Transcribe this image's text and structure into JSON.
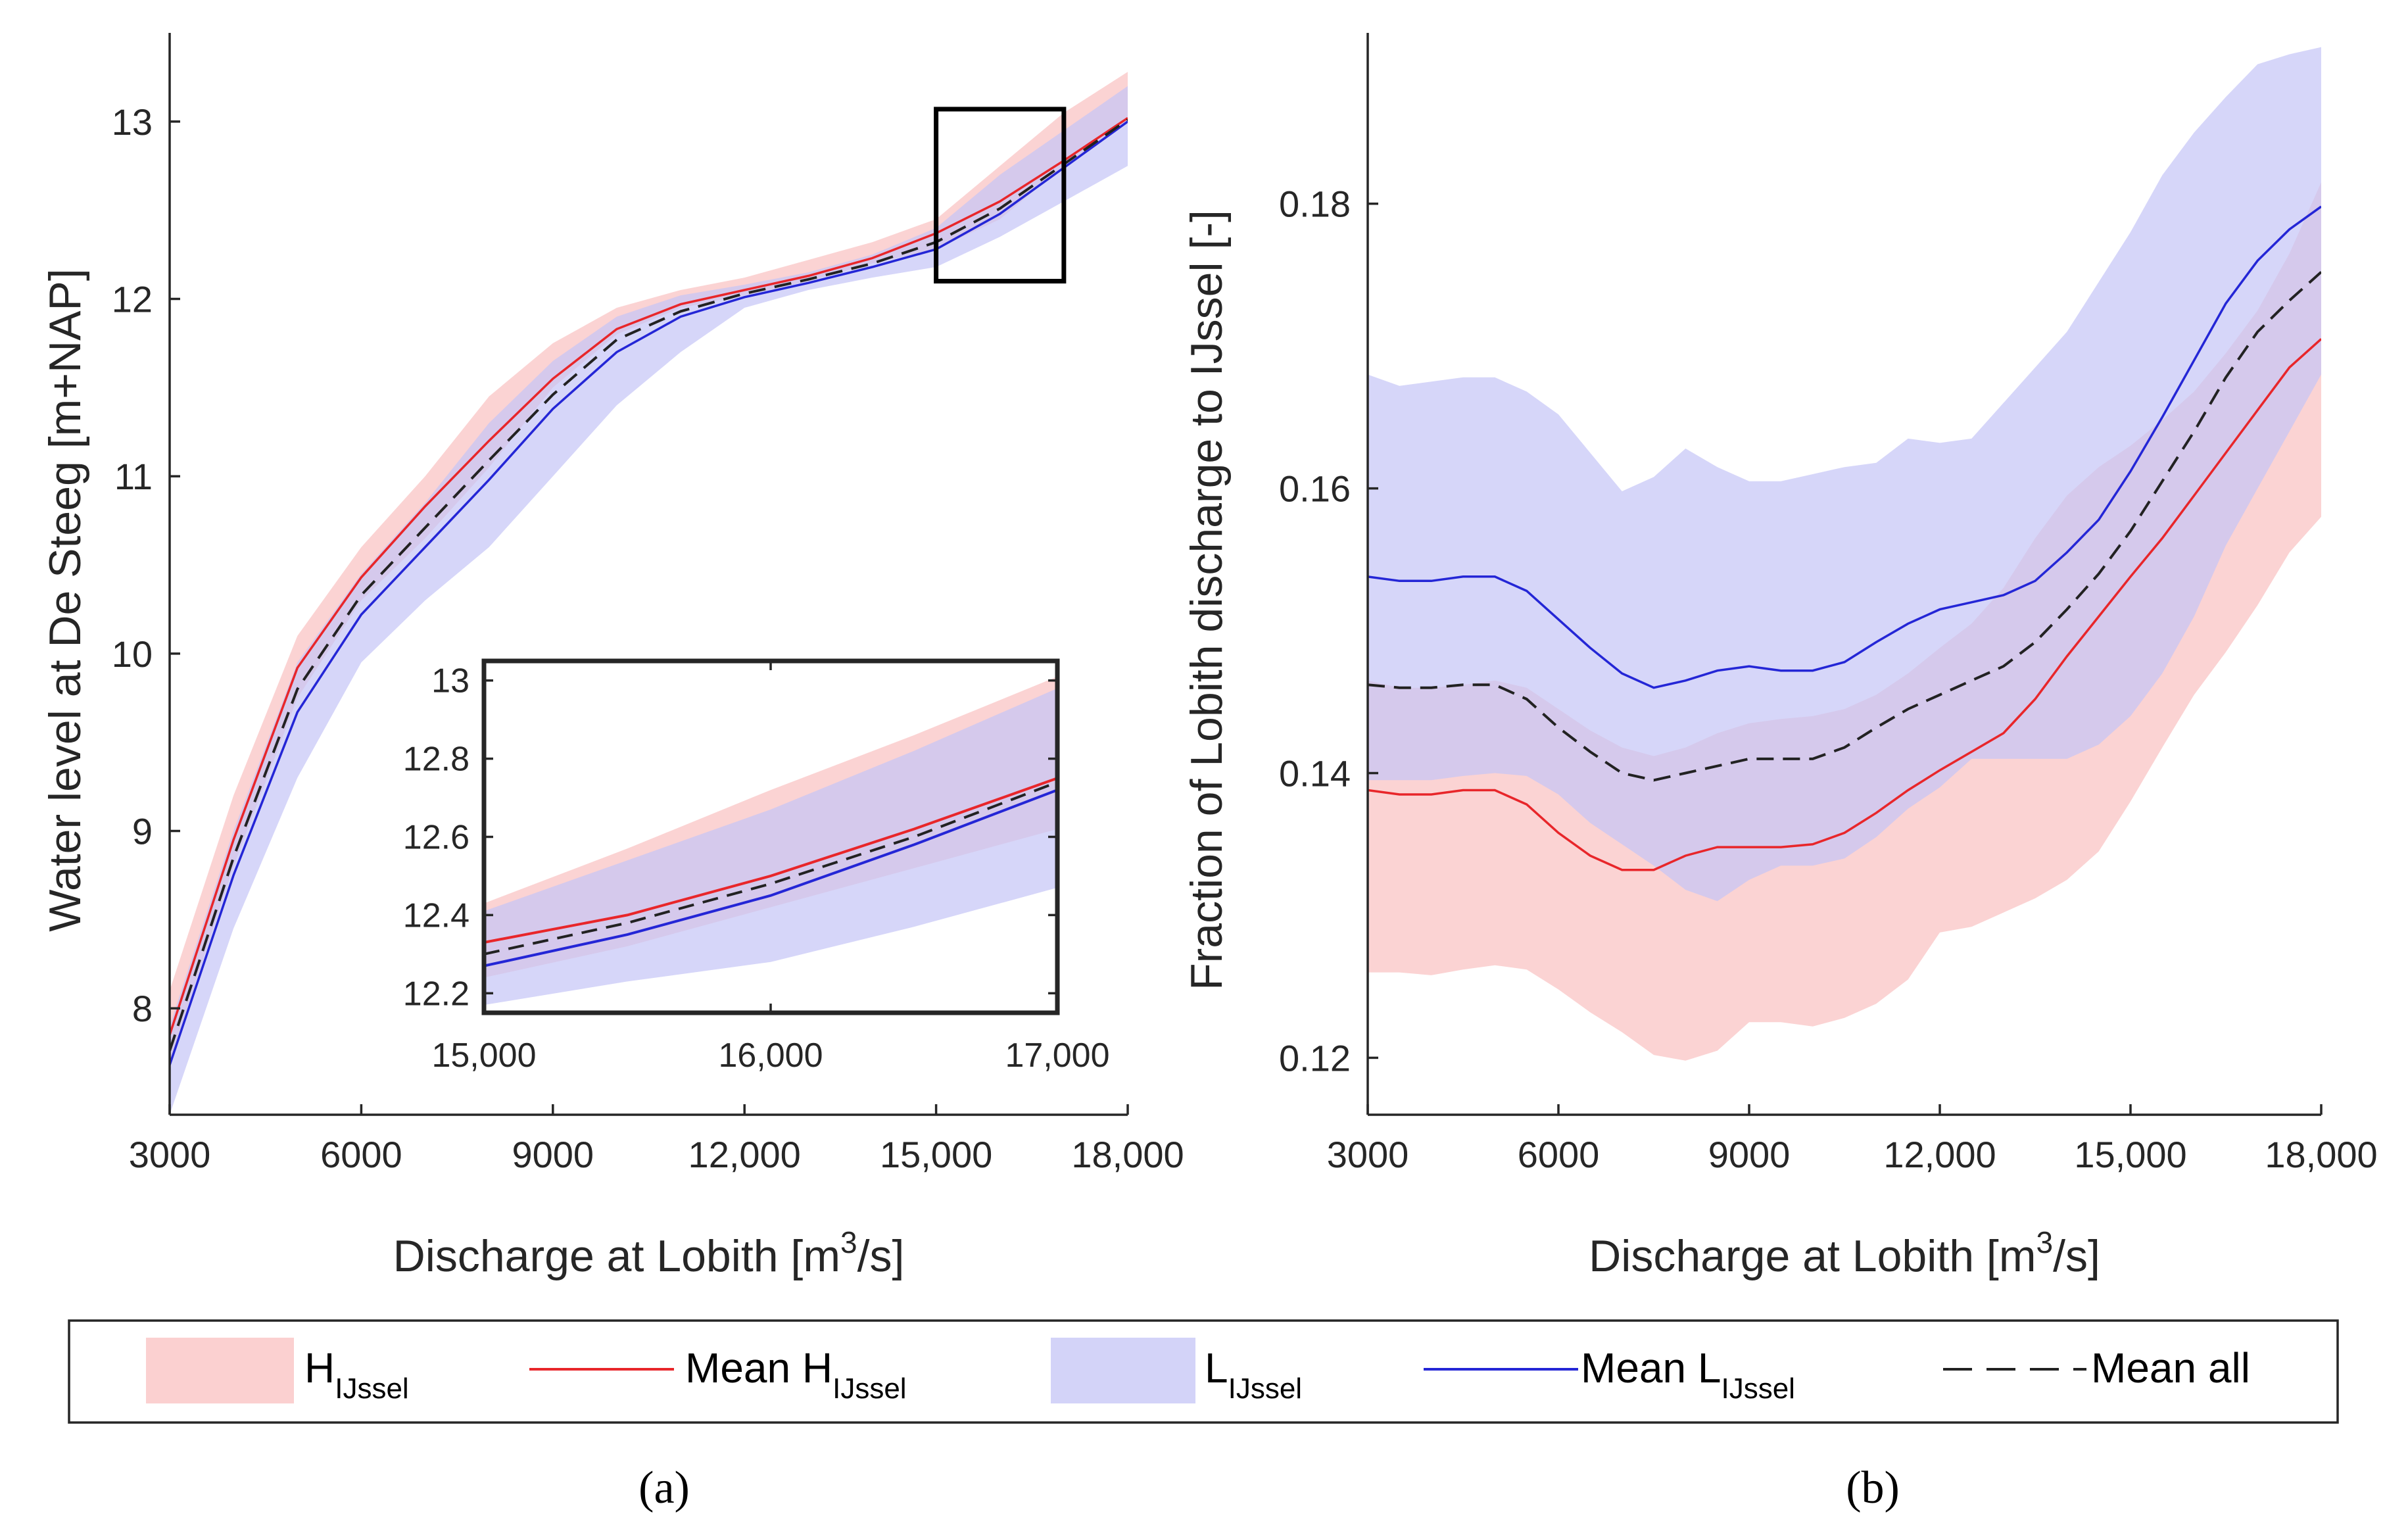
{
  "colors": {
    "h_band": "#f9c0c0",
    "l_band": "#c4c4f6",
    "mean_h": "#e8262a",
    "mean_l": "#2426d6",
    "mean_all": "#222222"
  },
  "chart_data": [
    {
      "id": "a",
      "type": "line",
      "panel_label": "(a)",
      "xlabel": "Discharge at Lobith [m",
      "xlabel_sup": "3",
      "xlabel_tail": "/s]",
      "ylabel": "Water level at De Steeg [m+NAP]",
      "xlim": [
        3000,
        18000
      ],
      "ylim": [
        7.4,
        13.5
      ],
      "xticks": [
        3000,
        6000,
        9000,
        12000,
        15000,
        18000
      ],
      "xtick_labels": [
        "3000",
        "6000",
        "9000",
        "12,000",
        "15,000",
        "18,000"
      ],
      "yticks": [
        8,
        9,
        10,
        11,
        12,
        13
      ],
      "ytick_labels": [
        "8",
        "9",
        "10",
        "11",
        "12",
        "13"
      ],
      "x": [
        3000,
        4000,
        5000,
        6000,
        7000,
        8000,
        9000,
        10000,
        11000,
        12000,
        13000,
        14000,
        15000,
        16000,
        17000,
        18000
      ],
      "series": [
        {
          "name": "H_IJssel band",
          "kind": "band",
          "color": "h_band",
          "lower": [
            7.7,
            8.8,
            9.75,
            10.3,
            10.65,
            11.05,
            11.5,
            11.8,
            11.95,
            12.02,
            12.1,
            12.2,
            12.28,
            12.45,
            12.75,
            13.0
          ],
          "upper": [
            8.1,
            9.2,
            10.1,
            10.6,
            11.0,
            11.45,
            11.75,
            11.95,
            12.05,
            12.12,
            12.22,
            12.32,
            12.45,
            12.75,
            13.05,
            13.28
          ]
        },
        {
          "name": "L_IJssel band",
          "kind": "band",
          "color": "l_band",
          "lower": [
            7.4,
            8.45,
            9.3,
            9.95,
            10.3,
            10.6,
            11.0,
            11.4,
            11.7,
            11.95,
            12.05,
            12.12,
            12.18,
            12.35,
            12.55,
            12.75
          ],
          "upper": [
            7.9,
            9.0,
            9.95,
            10.45,
            10.85,
            11.3,
            11.65,
            11.9,
            12.02,
            12.08,
            12.15,
            12.25,
            12.4,
            12.7,
            12.95,
            13.2
          ]
        },
        {
          "name": "Mean H_IJssel",
          "kind": "line",
          "color": "mean_h",
          "values": [
            7.85,
            8.95,
            9.92,
            10.43,
            10.83,
            11.2,
            11.55,
            11.83,
            11.97,
            12.05,
            12.13,
            12.23,
            12.37,
            12.55,
            12.78,
            13.02
          ]
        },
        {
          "name": "Mean L_IJssel",
          "kind": "line",
          "color": "mean_l",
          "values": [
            7.68,
            8.75,
            9.67,
            10.22,
            10.6,
            10.98,
            11.38,
            11.7,
            11.9,
            12.01,
            12.09,
            12.18,
            12.28,
            12.48,
            12.74,
            13.0
          ],
          "style": "solid"
        },
        {
          "name": "Mean all",
          "kind": "line",
          "color": "mean_all",
          "style": "dashed",
          "values": [
            7.76,
            8.85,
            9.8,
            10.33,
            10.71,
            11.09,
            11.46,
            11.77,
            11.93,
            12.03,
            12.11,
            12.2,
            12.32,
            12.51,
            12.76,
            13.01
          ]
        }
      ],
      "zoom_box": {
        "xlim": [
          15000,
          17000
        ],
        "ylim": [
          12.1,
          13.07
        ]
      },
      "inset": {
        "xlim": [
          15000,
          17000
        ],
        "ylim": [
          12.15,
          13.05
        ],
        "xticks": [
          15000,
          16000,
          17000
        ],
        "xtick_labels": [
          "15,000",
          "16,000",
          "17,000"
        ],
        "yticks": [
          12.2,
          12.4,
          12.6,
          12.8,
          13.0
        ],
        "ytick_labels": [
          "12.2",
          "12.4",
          "12.6",
          "12.8",
          "13"
        ],
        "x": [
          15000,
          15500,
          16000,
          16500,
          17000
        ],
        "h_lower": [
          12.24,
          12.32,
          12.42,
          12.52,
          12.62
        ],
        "h_upper": [
          12.43,
          12.57,
          12.72,
          12.86,
          13.01
        ],
        "l_lower": [
          12.17,
          12.23,
          12.28,
          12.37,
          12.47
        ],
        "l_upper": [
          12.41,
          12.54,
          12.67,
          12.82,
          12.98
        ],
        "mean_h": [
          12.33,
          12.4,
          12.5,
          12.62,
          12.75
        ],
        "mean_l": [
          12.27,
          12.35,
          12.45,
          12.58,
          12.72
        ],
        "mean_all": [
          12.3,
          12.38,
          12.48,
          12.6,
          12.74
        ]
      }
    },
    {
      "id": "b",
      "type": "line",
      "panel_label": "(b)",
      "xlabel": "Discharge at Lobith [m",
      "xlabel_sup": "3",
      "xlabel_tail": "/s]",
      "ylabel": "Fraction of Lobith discharge to IJssel [-]",
      "xlim": [
        3000,
        18000
      ],
      "ylim": [
        0.116,
        0.192
      ],
      "xticks": [
        3000,
        6000,
        9000,
        12000,
        15000,
        18000
      ],
      "xtick_labels": [
        "3000",
        "6000",
        "9000",
        "12,000",
        "15,000",
        "18,000"
      ],
      "yticks": [
        0.12,
        0.14,
        0.16,
        0.18
      ],
      "ytick_labels": [
        "0.12",
        "0.14",
        "0.16",
        "0.18"
      ],
      "x": [
        3000,
        3500,
        4000,
        4500,
        5000,
        5500,
        6000,
        6500,
        7000,
        7500,
        8000,
        8500,
        9000,
        9500,
        10000,
        10500,
        11000,
        11500,
        12000,
        12500,
        13000,
        13500,
        14000,
        14500,
        15000,
        15500,
        16000,
        16500,
        17000,
        17500,
        18000
      ],
      "series": [
        {
          "name": "H_IJssel band",
          "kind": "band",
          "color": "h_band",
          "lower": [
            0.126,
            0.126,
            0.1258,
            0.1262,
            0.1265,
            0.1262,
            0.1248,
            0.1232,
            0.1218,
            0.1202,
            0.1198,
            0.1205,
            0.1225,
            0.1225,
            0.1222,
            0.1228,
            0.1238,
            0.1255,
            0.1288,
            0.1292,
            0.1302,
            0.1312,
            0.1325,
            0.1345,
            0.138,
            0.1418,
            0.1455,
            0.1485,
            0.1518,
            0.1555,
            0.158
          ],
          "upper": [
            0.1465,
            0.146,
            0.146,
            0.1462,
            0.1465,
            0.146,
            0.1445,
            0.143,
            0.1418,
            0.1412,
            0.1418,
            0.1428,
            0.1435,
            0.1438,
            0.144,
            0.1445,
            0.1455,
            0.147,
            0.1488,
            0.1505,
            0.153,
            0.1565,
            0.1595,
            0.1615,
            0.163,
            0.1648,
            0.1668,
            0.1695,
            0.1725,
            0.1765,
            0.1815
          ]
        },
        {
          "name": "L_IJssel band",
          "kind": "band",
          "color": "l_band",
          "lower": [
            0.1395,
            0.1395,
            0.1395,
            0.1398,
            0.14,
            0.1398,
            0.1385,
            0.1365,
            0.135,
            0.1335,
            0.1318,
            0.131,
            0.1325,
            0.1335,
            0.1335,
            0.134,
            0.1355,
            0.1375,
            0.139,
            0.141,
            0.141,
            0.141,
            0.141,
            0.142,
            0.144,
            0.147,
            0.151,
            0.156,
            0.16,
            0.164,
            0.168
          ],
          "upper": [
            0.168,
            0.1672,
            0.1675,
            0.1678,
            0.1678,
            0.1668,
            0.1652,
            0.1625,
            0.1598,
            0.1608,
            0.1628,
            0.1615,
            0.1605,
            0.1605,
            0.161,
            0.1615,
            0.1618,
            0.1635,
            0.1632,
            0.1635,
            0.166,
            0.1685,
            0.171,
            0.1745,
            0.178,
            0.182,
            0.185,
            0.1875,
            0.1898,
            0.1905,
            0.191
          ]
        },
        {
          "name": "Mean H_IJssel",
          "kind": "line",
          "color": "mean_h",
          "values": [
            0.1388,
            0.1385,
            0.1385,
            0.1388,
            0.1388,
            0.1378,
            0.1358,
            0.1342,
            0.1332,
            0.1332,
            0.1342,
            0.1348,
            0.1348,
            0.1348,
            0.135,
            0.1358,
            0.1372,
            0.1388,
            0.1402,
            0.1415,
            0.1428,
            0.1452,
            0.1482,
            0.151,
            0.1538,
            0.1565,
            0.1595,
            0.1625,
            0.1655,
            0.1685,
            0.1705
          ]
        },
        {
          "name": "Mean L_IJssel",
          "kind": "line",
          "color": "mean_l",
          "values": [
            0.1538,
            0.1535,
            0.1535,
            0.1538,
            0.1538,
            0.1528,
            0.1508,
            0.1488,
            0.147,
            0.146,
            0.1465,
            0.1472,
            0.1475,
            0.1472,
            0.1472,
            0.1478,
            0.1492,
            0.1505,
            0.1515,
            0.152,
            0.1525,
            0.1535,
            0.1555,
            0.1578,
            0.1612,
            0.165,
            0.169,
            0.173,
            0.176,
            0.1782,
            0.1798
          ]
        },
        {
          "name": "Mean all",
          "kind": "line",
          "color": "mean_all",
          "style": "dashed",
          "values": [
            0.1462,
            0.146,
            0.146,
            0.1462,
            0.1462,
            0.1452,
            0.1432,
            0.1415,
            0.14,
            0.1395,
            0.14,
            0.1405,
            0.141,
            0.141,
            0.141,
            0.1418,
            0.1432,
            0.1445,
            0.1455,
            0.1465,
            0.1475,
            0.1492,
            0.1515,
            0.154,
            0.157,
            0.1605,
            0.164,
            0.1678,
            0.171,
            0.1732,
            0.1752
          ]
        }
      ]
    }
  ],
  "legend": {
    "position": "bottom",
    "items": [
      {
        "kind": "band",
        "color": "h_band",
        "label": "H",
        "sub": "IJssel"
      },
      {
        "kind": "line",
        "color": "mean_h",
        "label": "Mean H",
        "sub": "IJssel"
      },
      {
        "kind": "band",
        "color": "l_band",
        "label": "L",
        "sub": "IJssel"
      },
      {
        "kind": "line",
        "color": "mean_l",
        "label": "Mean L",
        "sub": "IJssel"
      },
      {
        "kind": "dashed",
        "color": "mean_all",
        "label": "Mean all",
        "sub": ""
      }
    ]
  }
}
